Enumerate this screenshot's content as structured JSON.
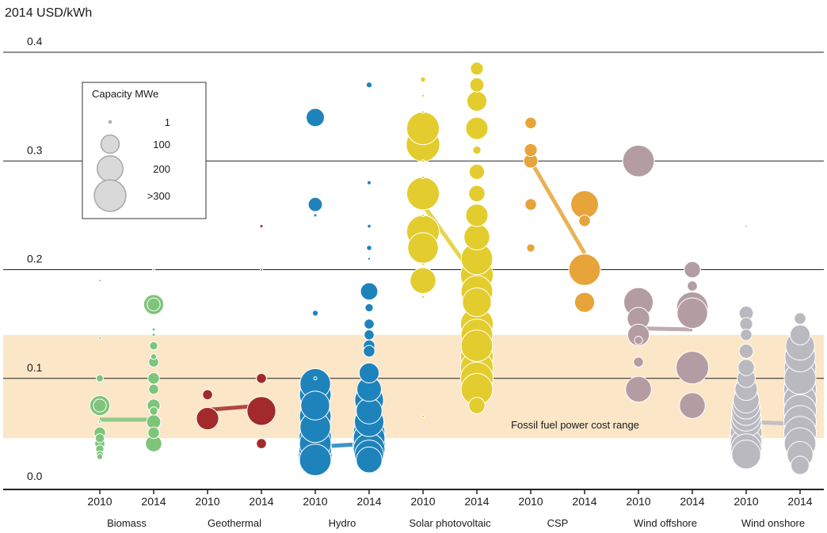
{
  "chart_data": {
    "type": "scatter",
    "ylabel": "2014 USD/kWh",
    "ylim": [
      0,
      0.4
    ],
    "yticks": [
      "0.0",
      "0.1",
      "0.2",
      "0.3",
      "0.4"
    ],
    "grid": true,
    "band": {
      "label": "Fossil fuel power cost range",
      "range": [
        0.045,
        0.14
      ],
      "color": "#fbe6c8"
    },
    "legend": {
      "title": "Capacity MWe",
      "placement": "top-left",
      "items": [
        {
          "label": "1",
          "capacity": 1
        },
        {
          "label": "100",
          "capacity": 100
        },
        {
          "label": "200",
          "capacity": 200
        },
        {
          "label": ">300",
          "capacity": 300
        }
      ]
    },
    "technologies": [
      {
        "name": "Biomass",
        "color": "#7ec47a",
        "years": [
          "2010",
          "2014"
        ],
        "avg": [
          0.062,
          0.062
        ],
        "points": [
          [
            [
              0.19,
              1
            ],
            [
              0.137,
              1
            ],
            [
              0.1,
              15
            ],
            [
              0.075,
              120
            ],
            [
              0.075,
              50
            ],
            [
              0.06,
              2
            ],
            [
              0.05,
              40
            ],
            [
              0.045,
              25
            ],
            [
              0.04,
              30
            ],
            [
              0.035,
              20
            ],
            [
              0.03,
              15
            ],
            [
              0.028,
              10
            ]
          ],
          [
            [
              0.2,
              1
            ],
            [
              0.168,
              120
            ],
            [
              0.168,
              50
            ],
            [
              0.145,
              3
            ],
            [
              0.14,
              3
            ],
            [
              0.13,
              20
            ],
            [
              0.12,
              10
            ],
            [
              0.115,
              30
            ],
            [
              0.1,
              40
            ],
            [
              0.09,
              30
            ],
            [
              0.075,
              50
            ],
            [
              0.07,
              20
            ],
            [
              0.06,
              60
            ],
            [
              0.05,
              40
            ],
            [
              0.04,
              80
            ]
          ]
        ]
      },
      {
        "name": "Geothermal",
        "color": "#a32a2a",
        "years": [
          "2010",
          "2014"
        ],
        "avg": [
          0.071,
          0.075
        ],
        "points": [
          [
            [
              0.085,
              30
            ],
            [
              0.063,
              150
            ]
          ],
          [
            [
              0.24,
              3
            ],
            [
              0.2,
              1
            ],
            [
              0.1,
              30
            ],
            [
              0.07,
              250
            ],
            [
              0.04,
              30
            ]
          ]
        ]
      },
      {
        "name": "Hydro",
        "color": "#1f83bb",
        "years": [
          "2010",
          "2014"
        ],
        "avg": [
          0.037,
          0.04
        ],
        "points": [
          [
            [
              0.34,
              100
            ],
            [
              0.26,
              60
            ],
            [
              0.25,
              3
            ],
            [
              0.16,
              10
            ],
            [
              0.1,
              3
            ],
            [
              0.095,
              280
            ],
            [
              0.085,
              300
            ],
            [
              0.075,
              250
            ],
            [
              0.065,
              300
            ],
            [
              0.055,
              280
            ],
            [
              0.045,
              320
            ],
            [
              0.04,
              300
            ],
            [
              0.035,
              320
            ],
            [
              0.03,
              340
            ],
            [
              0.025,
              300
            ]
          ],
          [
            [
              0.37,
              10
            ],
            [
              0.28,
              5
            ],
            [
              0.24,
              4
            ],
            [
              0.22,
              8
            ],
            [
              0.21,
              2
            ],
            [
              0.18,
              90
            ],
            [
              0.165,
              20
            ],
            [
              0.15,
              30
            ],
            [
              0.14,
              30
            ],
            [
              0.13,
              40
            ],
            [
              0.125,
              40
            ],
            [
              0.105,
              120
            ],
            [
              0.09,
              180
            ],
            [
              0.08,
              250
            ],
            [
              0.07,
              200
            ],
            [
              0.06,
              260
            ],
            [
              0.05,
              300
            ],
            [
              0.045,
              300
            ],
            [
              0.04,
              320
            ],
            [
              0.035,
              300
            ],
            [
              0.03,
              250
            ],
            [
              0.025,
              200
            ]
          ]
        ]
      },
      {
        "name": "Solar photovoltaic",
        "color": "#e3cd2e",
        "years": [
          "2010",
          "2014"
        ],
        "avg": [
          0.26,
          0.19
        ],
        "points": [
          [
            [
              0.375,
              8
            ],
            [
              0.36,
              2
            ],
            [
              0.345,
              2
            ],
            [
              0.33,
              320
            ],
            [
              0.315,
              340
            ],
            [
              0.3,
              2
            ],
            [
              0.285,
              2
            ],
            [
              0.27,
              320
            ],
            [
              0.25,
              2
            ],
            [
              0.235,
              320
            ],
            [
              0.22,
              280
            ],
            [
              0.205,
              2
            ],
            [
              0.19,
              200
            ],
            [
              0.175,
              2
            ],
            [
              0.065,
              2
            ]
          ],
          [
            [
              0.385,
              50
            ],
            [
              0.37,
              60
            ],
            [
              0.355,
              120
            ],
            [
              0.33,
              150
            ],
            [
              0.31,
              20
            ],
            [
              0.29,
              70
            ],
            [
              0.27,
              80
            ],
            [
              0.25,
              150
            ],
            [
              0.23,
              200
            ],
            [
              0.21,
              300
            ],
            [
              0.195,
              320
            ],
            [
              0.18,
              300
            ],
            [
              0.17,
              250
            ],
            [
              0.15,
              320
            ],
            [
              0.14,
              300
            ],
            [
              0.13,
              300
            ],
            [
              0.12,
              320
            ],
            [
              0.11,
              320
            ],
            [
              0.1,
              320
            ],
            [
              0.09,
              300
            ],
            [
              0.075,
              80
            ]
          ]
        ]
      },
      {
        "name": "CSP",
        "color": "#e6a43a",
        "years": [
          "2010",
          "2014"
        ],
        "avg": [
          0.3,
          0.215
        ],
        "points": [
          [
            [
              0.335,
              40
            ],
            [
              0.31,
              50
            ],
            [
              0.3,
              60
            ],
            [
              0.26,
              40
            ],
            [
              0.22,
              20
            ]
          ],
          [
            [
              0.26,
              230
            ],
            [
              0.245,
              40
            ],
            [
              0.2,
              300
            ],
            [
              0.17,
              120
            ]
          ]
        ]
      },
      {
        "name": "Wind offshore",
        "color": "#b39da3",
        "years": [
          "2010",
          "2014"
        ],
        "avg": [
          0.146,
          0.145
        ],
        "points": [
          [
            [
              0.3,
              300
            ],
            [
              0.17,
              260
            ],
            [
              0.155,
              150
            ],
            [
              0.14,
              140
            ],
            [
              0.135,
              20
            ],
            [
              0.115,
              30
            ],
            [
              0.09,
              200
            ]
          ],
          [
            [
              0.2,
              80
            ],
            [
              0.185,
              30
            ],
            [
              0.165,
              300
            ],
            [
              0.16,
              280
            ],
            [
              0.11,
              320
            ],
            [
              0.075,
              200
            ]
          ]
        ]
      },
      {
        "name": "Wind onshore",
        "color": "#b9b9bf",
        "years": [
          "2010",
          "2014"
        ],
        "avg": [
          0.06,
          0.058
        ],
        "points": [
          [
            [
              0.24,
              1
            ],
            [
              0.16,
              60
            ],
            [
              0.15,
              50
            ],
            [
              0.14,
              40
            ],
            [
              0.125,
              60
            ],
            [
              0.11,
              80
            ],
            [
              0.1,
              100
            ],
            [
              0.09,
              150
            ],
            [
              0.08,
              200
            ],
            [
              0.075,
              220
            ],
            [
              0.07,
              250
            ],
            [
              0.065,
              260
            ],
            [
              0.06,
              280
            ],
            [
              0.055,
              300
            ],
            [
              0.05,
              300
            ],
            [
              0.045,
              320
            ],
            [
              0.04,
              300
            ],
            [
              0.035,
              280
            ],
            [
              0.03,
              250
            ]
          ],
          [
            [
              0.155,
              40
            ],
            [
              0.14,
              120
            ],
            [
              0.13,
              250
            ],
            [
              0.12,
              280
            ],
            [
              0.11,
              300
            ],
            [
              0.1,
              300
            ],
            [
              0.09,
              320
            ],
            [
              0.08,
              320
            ],
            [
              0.07,
              320
            ],
            [
              0.06,
              320
            ],
            [
              0.05,
              320
            ],
            [
              0.04,
              300
            ],
            [
              0.03,
              200
            ],
            [
              0.02,
              100
            ]
          ]
        ]
      }
    ]
  }
}
